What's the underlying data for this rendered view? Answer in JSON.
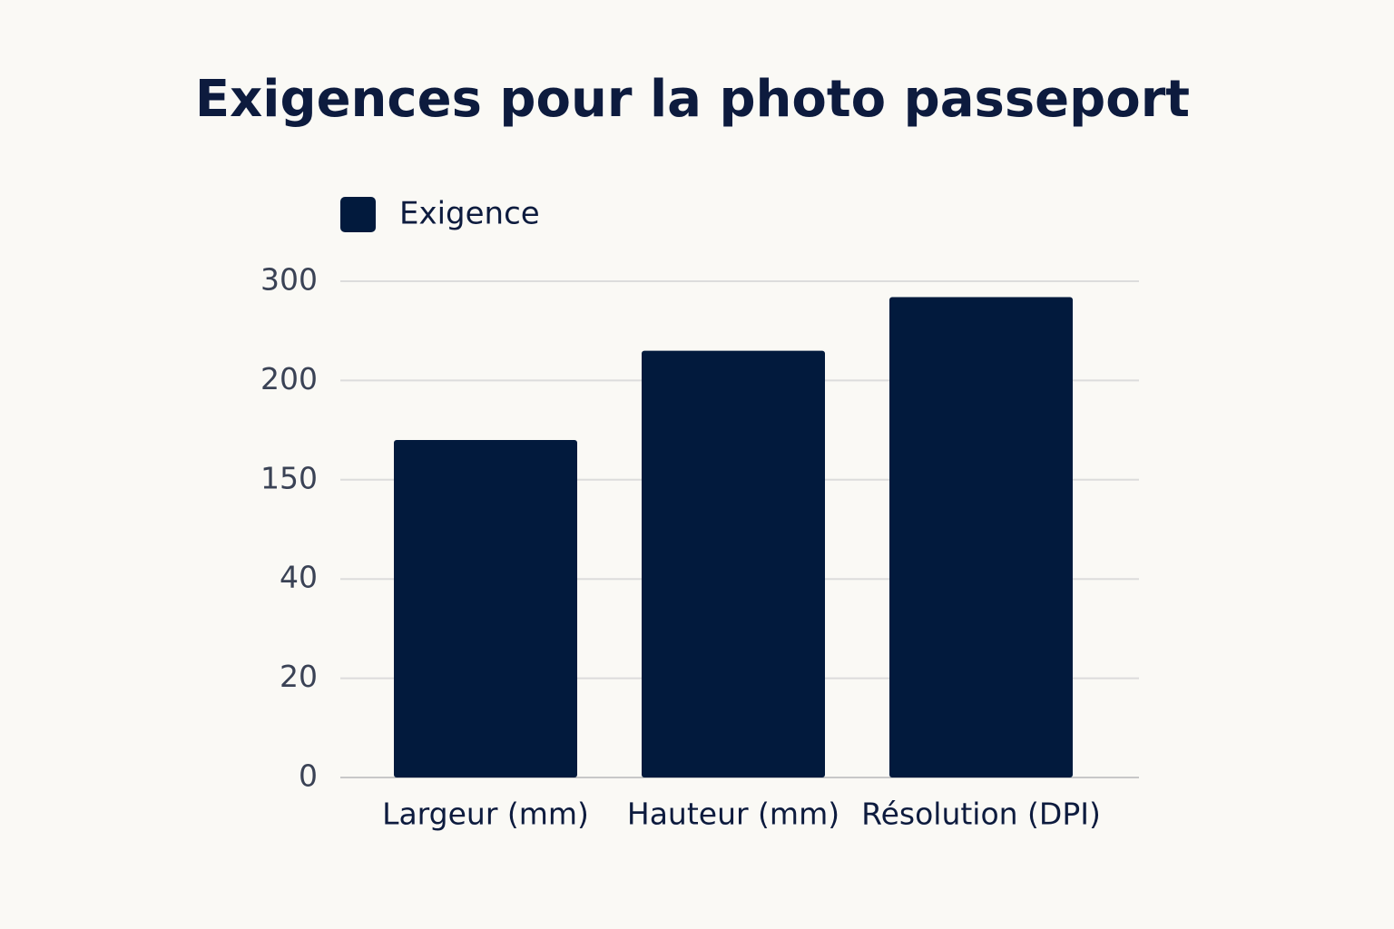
{
  "chart_data": {
    "type": "bar",
    "title": "Exigences pour la photo passeport",
    "categories": [
      "Largeur (mm)",
      "Hauteur (mm)",
      "Résolution (DPI)"
    ],
    "series": [
      {
        "name": "Exigence",
        "color": "#021a3d",
        "values": [
          170,
          230,
          284
        ]
      }
    ],
    "ylim": [
      0,
      300
    ],
    "yticks": [
      0,
      20,
      40,
      150,
      200,
      300
    ],
    "grid": true,
    "legend": "top-left"
  }
}
